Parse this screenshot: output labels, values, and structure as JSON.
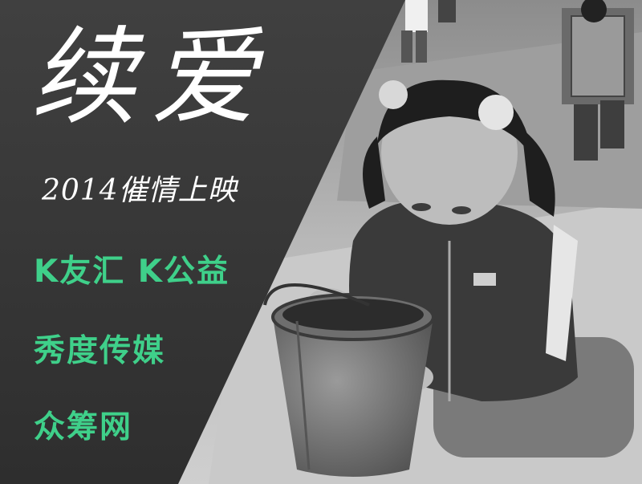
{
  "poster": {
    "title": "续爱",
    "subtitle": "2014催情上映",
    "partners": [
      "K友汇 K公益",
      "秀度传媒",
      "众筹网"
    ]
  },
  "colors": {
    "panel": "#3a3a3a",
    "partner_text": "#3fd08a",
    "title_text": "#ffffff"
  }
}
